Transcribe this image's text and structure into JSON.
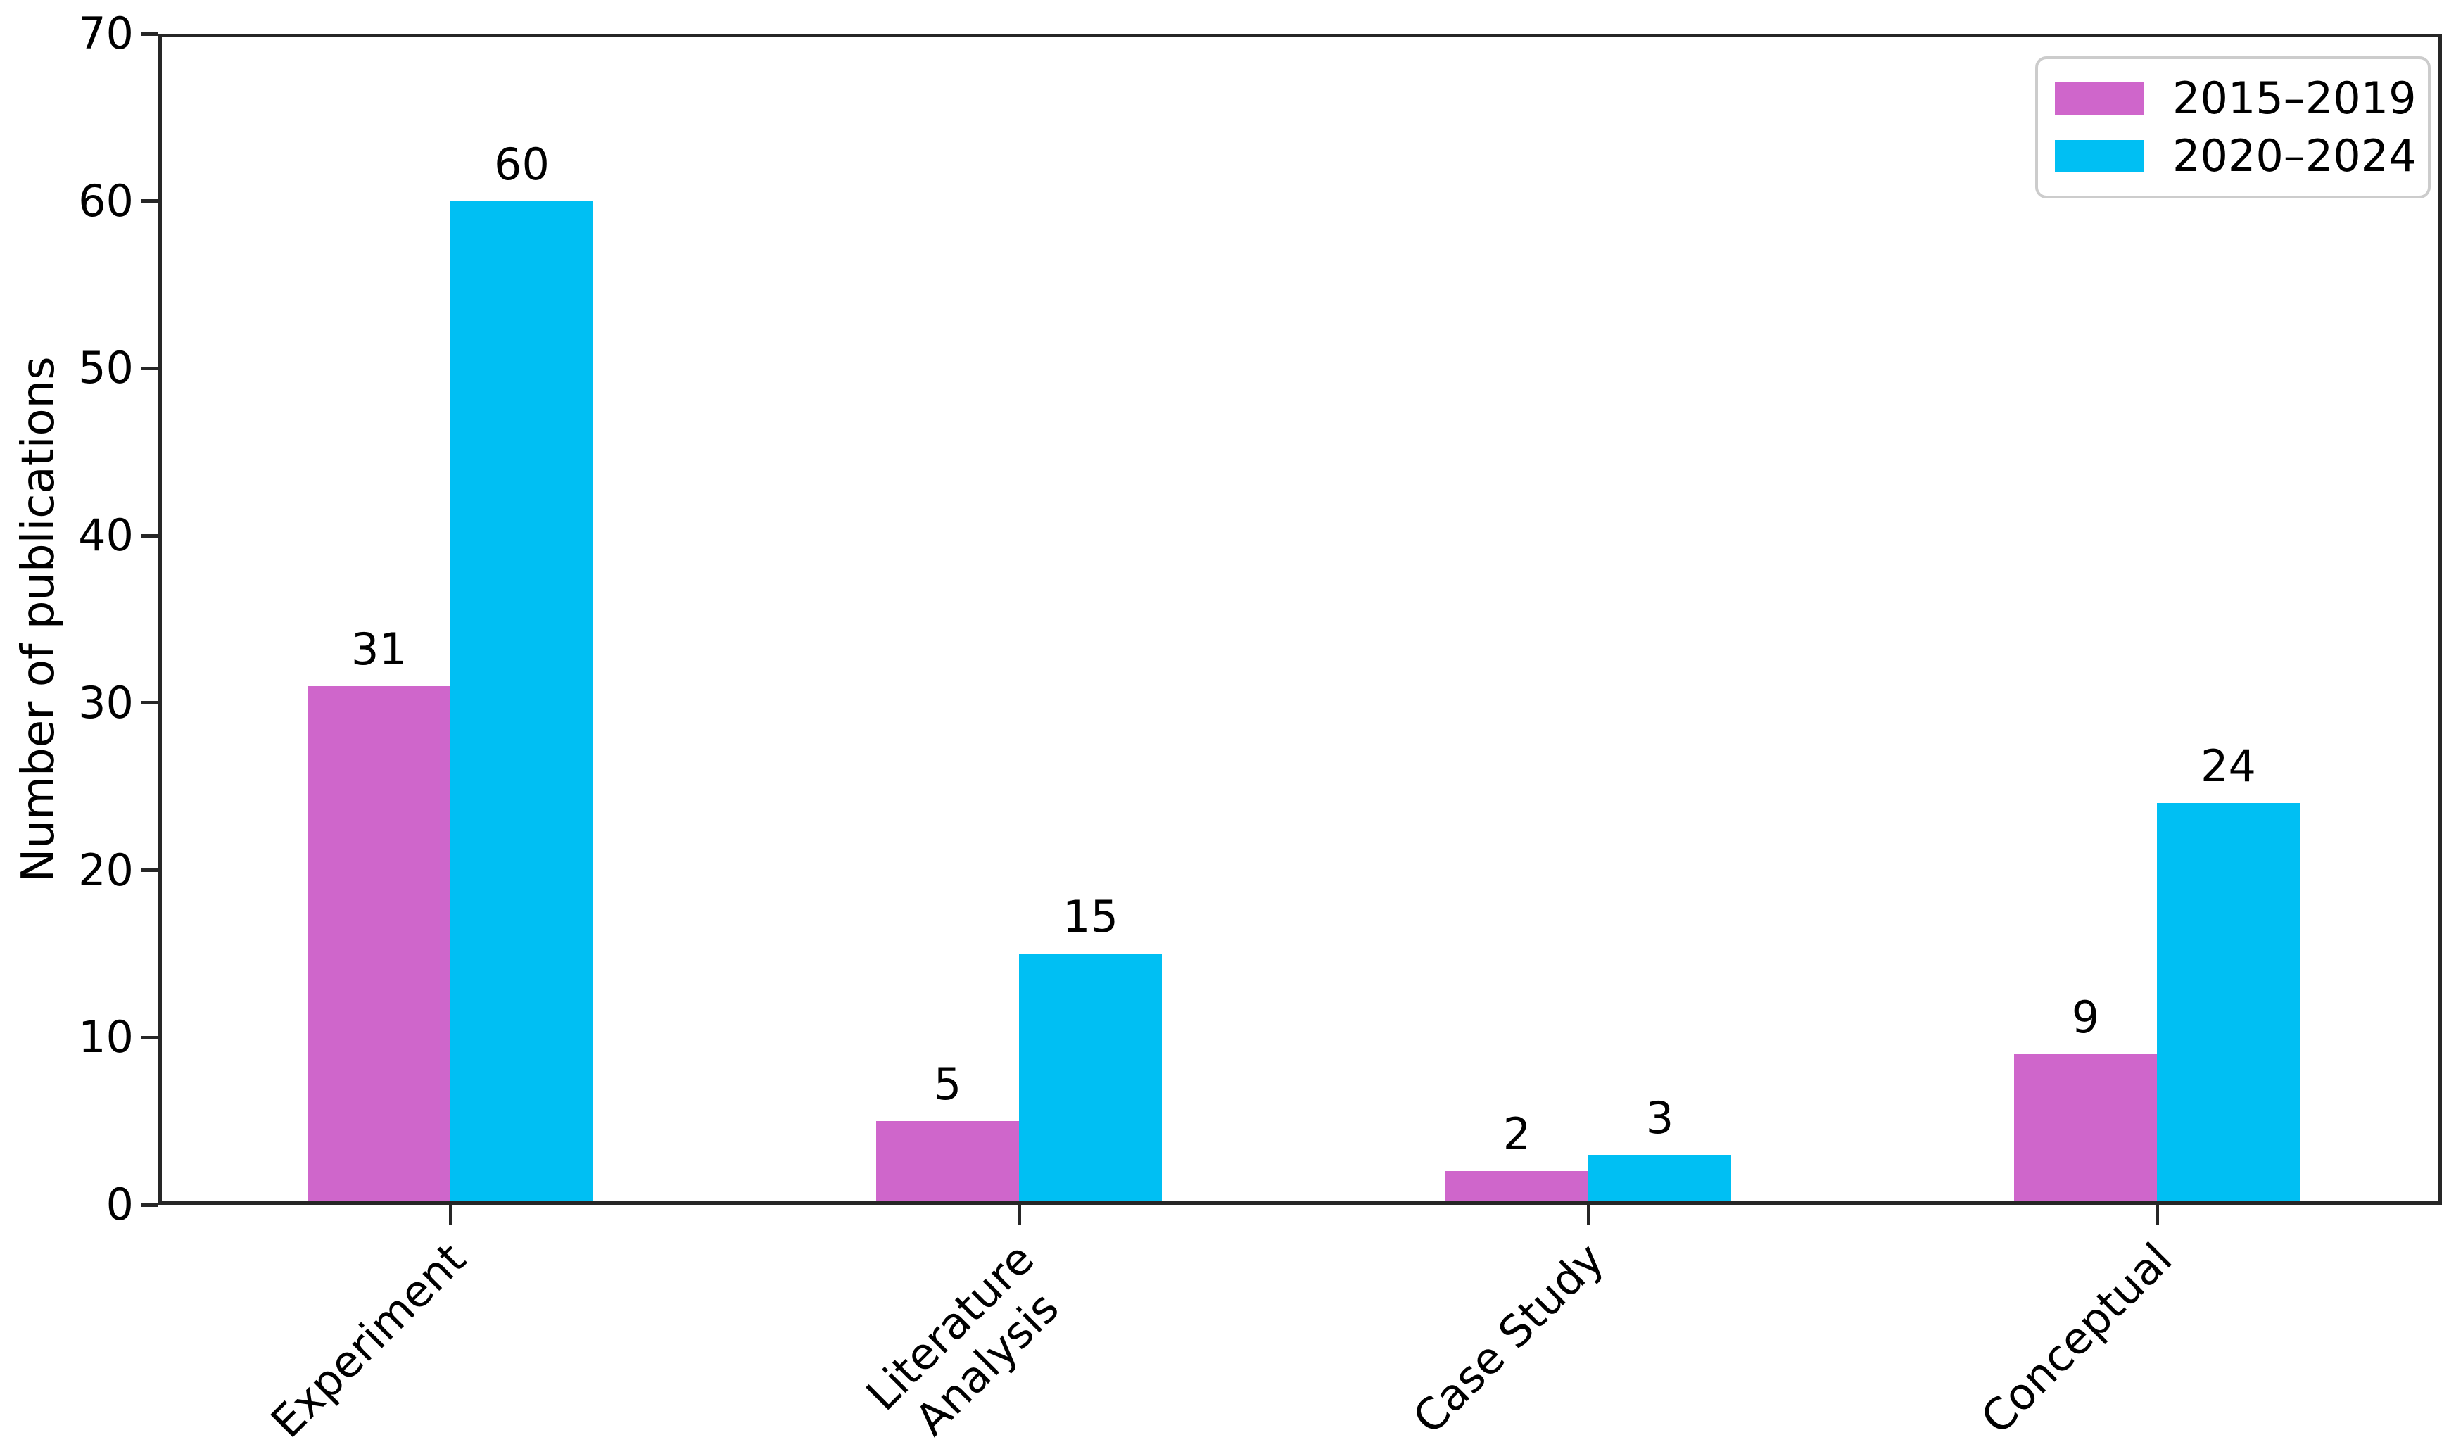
{
  "chart_data": {
    "type": "bar",
    "title": "",
    "categories": [
      "Experiment",
      "Literature\nAnalysis",
      "Case Study",
      "Conceptual"
    ],
    "series": [
      {
        "name": "2015–2019",
        "color": "#cf66cb",
        "values": [
          31,
          5,
          2,
          9
        ]
      },
      {
        "name": "2020–2024",
        "color": "#00bff3",
        "values": [
          60,
          15,
          3,
          24
        ]
      }
    ],
    "xlabel": "",
    "ylabel": "Number of publications",
    "ylim": [
      0,
      70
    ],
    "yticks": [
      0,
      10,
      20,
      30,
      40,
      50,
      60,
      70
    ],
    "grid": false,
    "bar_value_labels": true,
    "legend_position": "upper right",
    "colors": {
      "spine": "#262626",
      "text": "#000000",
      "legend_border": "#cccccc",
      "background": "#ffffff"
    }
  }
}
